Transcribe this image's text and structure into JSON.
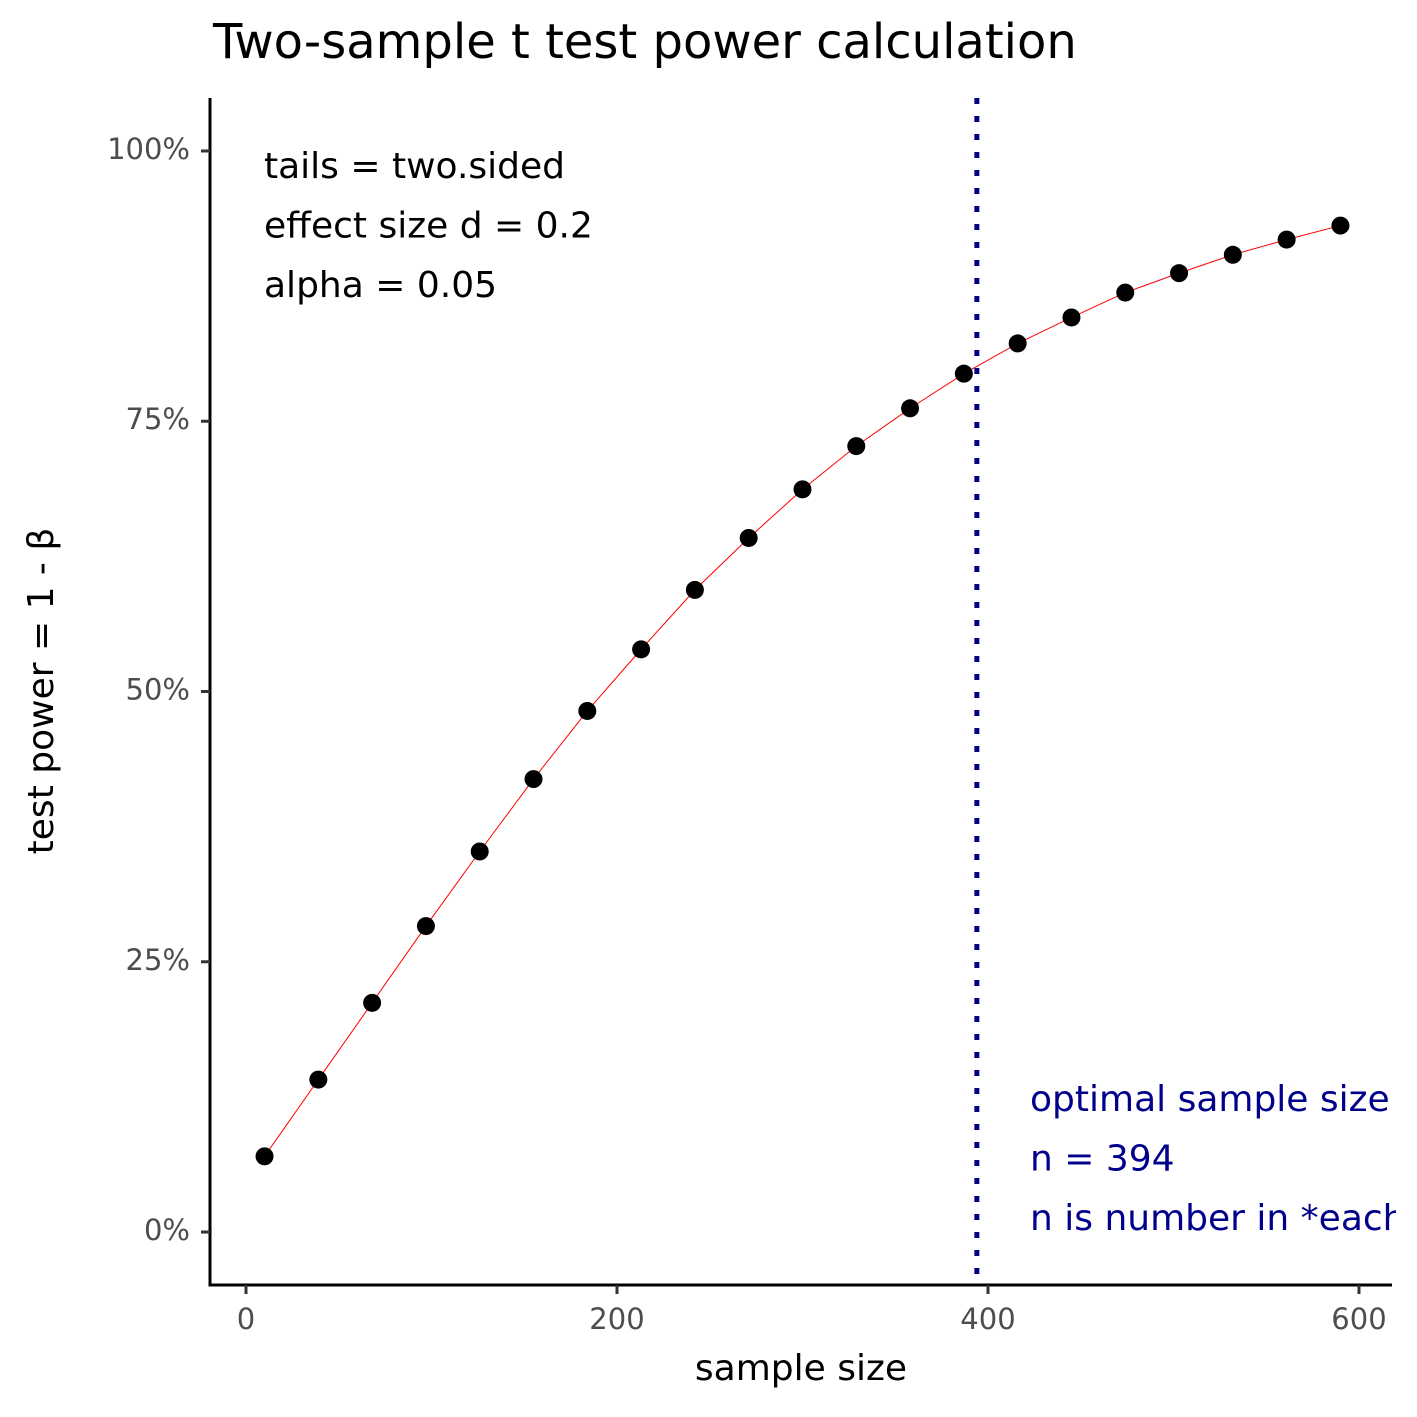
{
  "chart_data": {
    "type": "line",
    "title": "Two-sample t test power calculation",
    "x_label": "sample size",
    "y_label": "test power = 1 - β",
    "x": [
      10,
      39,
      68,
      97,
      126,
      155,
      184,
      213,
      242,
      271,
      300,
      329,
      358,
      387,
      416,
      445,
      474,
      503,
      532,
      561,
      590
    ],
    "values": [
      7.0,
      14.1,
      21.2,
      28.3,
      35.2,
      41.9,
      48.2,
      53.9,
      59.4,
      64.2,
      68.7,
      72.7,
      76.2,
      79.4,
      82.2,
      84.6,
      86.9,
      88.7,
      90.4,
      91.8,
      93.1
    ],
    "color": "#ff0000",
    "marker_color": "#000000",
    "xlim": [
      -19.4,
      617.8
    ],
    "ylim": [
      -4.9,
      104.9
    ],
    "xticks": [
      0,
      200,
      400,
      600
    ],
    "yticks": [
      {
        "value": 0,
        "label": "0%"
      },
      {
        "value": 25,
        "label": "25%"
      },
      {
        "value": 50,
        "label": "50%"
      },
      {
        "value": 75,
        "label": "75%"
      },
      {
        "value": 100,
        "label": "100%"
      }
    ],
    "vline": {
      "x": 394,
      "color": "#00008b"
    },
    "annotations": [
      {
        "lines": [
          "tails = two.sided",
          "effect size d = 0.2",
          "alpha = 0.05"
        ],
        "color": "#000000"
      },
      {
        "lines": [
          "optimal sample size",
          "n = 394",
          "n is number in *each* group"
        ],
        "color": "#00008b"
      }
    ],
    "grid": false
  }
}
